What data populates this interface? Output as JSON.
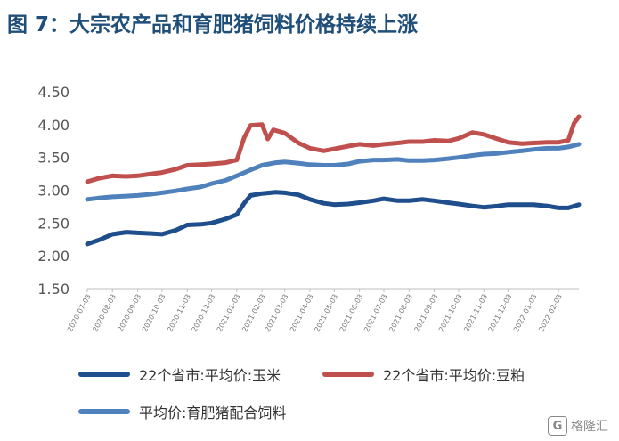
{
  "title": "图 7：大宗农产品和育肥猪饲料价格持续上涨",
  "watermark": {
    "logo": "G",
    "text": "格隆汇"
  },
  "chart_data": {
    "type": "line",
    "title": "",
    "ylim": [
      1.5,
      4.5
    ],
    "yticks": [
      "1.50",
      "2.00",
      "2.50",
      "3.00",
      "3.50",
      "4.00",
      "4.50"
    ],
    "xlim": [
      "2020-07-03",
      "2022-02-28"
    ],
    "xticks": [
      "2020-07-03",
      "2020-08-03",
      "2020-09-03",
      "2020-10-03",
      "2020-11-03",
      "2020-12-03",
      "2021-01-03",
      "2021-02-03",
      "2021-03-03",
      "2021-04-03",
      "2021-05-03",
      "2021-06-03",
      "2021-07-03",
      "2021-08-03",
      "2021-09-03",
      "2021-10-03",
      "2021-11-03",
      "2021-12-03",
      "2022-01-03",
      "2022-02-03"
    ],
    "grid": false,
    "legend_position": "bottom",
    "series": [
      {
        "name": "22个省市:平均价:玉米",
        "color": "#1f4e8c",
        "x": [
          "2020-07-03",
          "2020-07-17",
          "2020-08-03",
          "2020-08-20",
          "2020-09-03",
          "2020-09-20",
          "2020-10-03",
          "2020-10-20",
          "2020-11-03",
          "2020-11-20",
          "2020-12-03",
          "2020-12-20",
          "2021-01-03",
          "2021-01-12",
          "2021-01-20",
          "2021-02-03",
          "2021-02-20",
          "2021-03-03",
          "2021-03-20",
          "2021-04-03",
          "2021-04-20",
          "2021-05-03",
          "2021-05-20",
          "2021-06-03",
          "2021-06-20",
          "2021-07-03",
          "2021-07-20",
          "2021-08-03",
          "2021-08-20",
          "2021-09-03",
          "2021-09-20",
          "2021-10-03",
          "2021-10-20",
          "2021-11-03",
          "2021-11-20",
          "2021-12-03",
          "2021-12-20",
          "2022-01-03",
          "2022-01-20",
          "2022-02-03",
          "2022-02-15",
          "2022-02-28"
        ],
        "values": [
          2.18,
          2.24,
          2.33,
          2.36,
          2.35,
          2.34,
          2.33,
          2.39,
          2.47,
          2.48,
          2.5,
          2.56,
          2.63,
          2.8,
          2.92,
          2.95,
          2.97,
          2.96,
          2.93,
          2.86,
          2.8,
          2.78,
          2.79,
          2.81,
          2.84,
          2.87,
          2.84,
          2.84,
          2.86,
          2.84,
          2.81,
          2.79,
          2.76,
          2.74,
          2.76,
          2.78,
          2.78,
          2.78,
          2.76,
          2.73,
          2.73,
          2.78
        ]
      },
      {
        "name": "22个省市:平均价:豆粕",
        "color": "#c0504d",
        "x": [
          "2020-07-03",
          "2020-07-17",
          "2020-08-03",
          "2020-08-20",
          "2020-09-03",
          "2020-09-20",
          "2020-10-03",
          "2020-10-20",
          "2020-11-03",
          "2020-11-20",
          "2020-12-03",
          "2020-12-20",
          "2021-01-03",
          "2021-01-12",
          "2021-01-20",
          "2021-02-03",
          "2021-02-10",
          "2021-02-17",
          "2021-03-03",
          "2021-03-20",
          "2021-04-03",
          "2021-04-20",
          "2021-05-03",
          "2021-05-20",
          "2021-06-03",
          "2021-06-20",
          "2021-07-03",
          "2021-07-20",
          "2021-08-03",
          "2021-08-20",
          "2021-09-03",
          "2021-09-20",
          "2021-10-03",
          "2021-10-20",
          "2021-11-03",
          "2021-11-20",
          "2021-12-03",
          "2021-12-20",
          "2022-01-03",
          "2022-01-20",
          "2022-02-03",
          "2022-02-15",
          "2022-02-22",
          "2022-02-28"
        ],
        "values": [
          3.13,
          3.18,
          3.22,
          3.21,
          3.22,
          3.25,
          3.27,
          3.32,
          3.38,
          3.39,
          3.4,
          3.42,
          3.46,
          3.8,
          3.99,
          4.0,
          3.78,
          3.92,
          3.87,
          3.72,
          3.64,
          3.6,
          3.63,
          3.67,
          3.7,
          3.68,
          3.7,
          3.72,
          3.74,
          3.74,
          3.76,
          3.75,
          3.79,
          3.88,
          3.85,
          3.78,
          3.73,
          3.71,
          3.72,
          3.73,
          3.73,
          3.76,
          4.02,
          4.12
        ]
      },
      {
        "name": "平均价:育肥猪配合饲料",
        "color": "#4f81bd",
        "x": [
          "2020-07-03",
          "2020-07-17",
          "2020-08-03",
          "2020-08-20",
          "2020-09-03",
          "2020-09-20",
          "2020-10-03",
          "2020-10-20",
          "2020-11-03",
          "2020-11-20",
          "2020-12-03",
          "2020-12-20",
          "2021-01-03",
          "2021-01-20",
          "2021-02-03",
          "2021-02-20",
          "2021-03-03",
          "2021-03-20",
          "2021-04-03",
          "2021-04-20",
          "2021-05-03",
          "2021-05-20",
          "2021-06-03",
          "2021-06-20",
          "2021-07-03",
          "2021-07-20",
          "2021-08-03",
          "2021-08-20",
          "2021-09-03",
          "2021-09-20",
          "2021-10-03",
          "2021-10-20",
          "2021-11-03",
          "2021-11-20",
          "2021-12-03",
          "2021-12-20",
          "2022-01-03",
          "2022-01-20",
          "2022-02-03",
          "2022-02-15",
          "2022-02-28"
        ],
        "values": [
          2.86,
          2.88,
          2.9,
          2.91,
          2.92,
          2.94,
          2.96,
          2.99,
          3.02,
          3.05,
          3.1,
          3.15,
          3.22,
          3.31,
          3.38,
          3.42,
          3.43,
          3.41,
          3.39,
          3.38,
          3.38,
          3.4,
          3.44,
          3.46,
          3.46,
          3.47,
          3.45,
          3.45,
          3.46,
          3.48,
          3.5,
          3.53,
          3.55,
          3.56,
          3.58,
          3.6,
          3.62,
          3.64,
          3.64,
          3.66,
          3.7
        ]
      }
    ]
  }
}
